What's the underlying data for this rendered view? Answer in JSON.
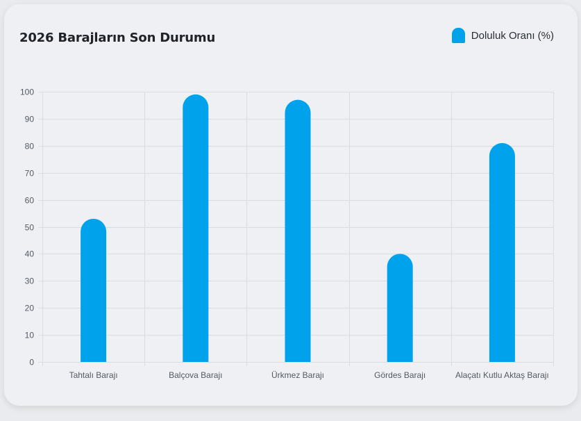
{
  "colors": {
    "bar": "#00a2eb",
    "grid": "#d9dce1",
    "axis_text": "#555a60"
  },
  "chart_data": {
    "type": "bar",
    "title": "2026 Barajların Son Durumu",
    "categories": [
      "Tahtalı Barajı",
      "Balçova Barajı",
      "Ürkmez Barajı",
      "Gördes Barajı",
      "Alaçatı Kutlu Aktaş Barajı"
    ],
    "series": [
      {
        "name": "Doluluk Oranı (%)",
        "values": [
          53,
          99,
          97,
          40,
          81
        ]
      }
    ],
    "ylim": [
      0,
      100
    ],
    "yticks": [
      0,
      10,
      20,
      30,
      40,
      50,
      60,
      70,
      80,
      90,
      100
    ],
    "grid": true,
    "legend_position": "top-right"
  }
}
